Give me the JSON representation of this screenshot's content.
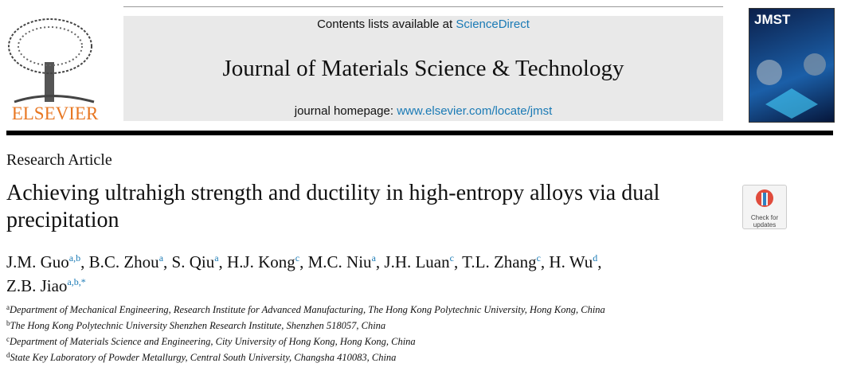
{
  "header": {
    "contents_prefix": "Contents lists available at",
    "contents_link": "ScienceDirect",
    "journal": "Journal of Materials Science & Technology",
    "homepage_prefix": "journal homepage:",
    "homepage_link": "www.elsevier.com/locate/jmst",
    "publisher": "ELSEVIER",
    "cover_title": "JMST"
  },
  "article_type": "Research Article",
  "title": "Achieving ultrahigh strength and ductility in high-entropy alloys via dual precipitation",
  "check_updates": "Check for updates",
  "author_separator": ",",
  "authors": [
    {
      "name": "J.M. Guo",
      "affil": "a,b"
    },
    {
      "name": "B.C. Zhou",
      "affil": "a"
    },
    {
      "name": "S. Qiu",
      "affil": "a"
    },
    {
      "name": "H.J. Kong",
      "affil": "c"
    },
    {
      "name": "M.C. Niu",
      "affil": "a"
    },
    {
      "name": "J.H. Luan",
      "affil": "c"
    },
    {
      "name": "T.L. Zhang",
      "affil": "c"
    },
    {
      "name": "H. Wu",
      "affil": "d"
    },
    {
      "name": "Z.B. Jiao",
      "affil": "a,b,*"
    }
  ],
  "affiliations": [
    {
      "label": "a",
      "text": "Department of Mechanical Engineering, Research Institute for Advanced Manufacturing, The Hong Kong Polytechnic University, Hong Kong, China"
    },
    {
      "label": "b",
      "text": "The Hong Kong Polytechnic University Shenzhen Research Institute, Shenzhen 518057, China"
    },
    {
      "label": "c",
      "text": "Department of Materials Science and Engineering, City University of Hong Kong, Hong Kong, China"
    },
    {
      "label": "d",
      "text": "State Key Laboratory of Powder Metallurgy, Central South University, Changsha 410083, China"
    }
  ]
}
